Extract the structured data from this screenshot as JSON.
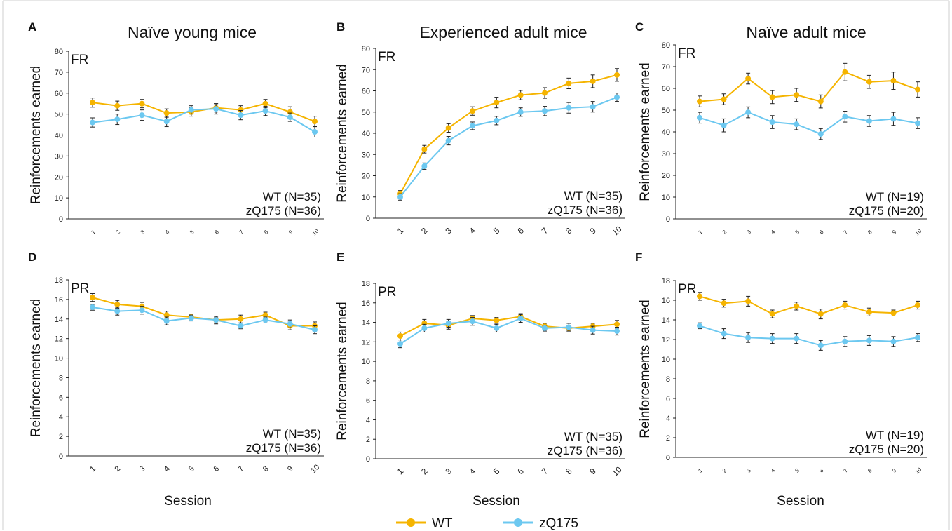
{
  "colors": {
    "wt": "#F5B400",
    "zq": "#6CC8F0",
    "axis": "#222222",
    "text": "#111111"
  },
  "column_titles": [
    "Naïve young mice",
    "Experienced adult mice",
    "Naïve adult mice"
  ],
  "x_axis_label": "Session",
  "legend": {
    "items": [
      {
        "label": "WT",
        "color": "#F5B400"
      },
      {
        "label": "zQ175",
        "color": "#6CC8F0"
      }
    ]
  },
  "chart_data": [
    {
      "type": "line",
      "panel": "A",
      "schedule": "FR",
      "ylabel": "Reinforcements earned",
      "ylim": [
        0,
        80
      ],
      "yticks": [
        0,
        10,
        20,
        30,
        40,
        50,
        60,
        70,
        80
      ],
      "x": [
        1,
        2,
        3,
        4,
        5,
        6,
        7,
        8,
        9,
        10
      ],
      "series": [
        {
          "name": "WT",
          "values": [
            55.5,
            54,
            55,
            50.5,
            51,
            53,
            52,
            55,
            51,
            46.5
          ],
          "errors": [
            2.2,
            2.2,
            2,
            2,
            2,
            2,
            2,
            2,
            2.5,
            2.5
          ]
        },
        {
          "name": "zQ175",
          "values": [
            46,
            47.5,
            49.5,
            46.5,
            52,
            52.5,
            49.5,
            51.5,
            48.5,
            41.5
          ],
          "errors": [
            2.2,
            2.5,
            2.5,
            2.5,
            2,
            2.5,
            2.2,
            2.2,
            2,
            2.5
          ]
        }
      ],
      "annotation": [
        "WT (N=35)",
        "zQ175 (N=36)"
      ]
    },
    {
      "type": "line",
      "panel": "B",
      "schedule": "FR",
      "ylabel": "Reinforcements earned",
      "ylim": [
        0,
        80
      ],
      "yticks": [
        0,
        10,
        20,
        30,
        40,
        50,
        60,
        70,
        80
      ],
      "x": [
        1,
        2,
        3,
        4,
        5,
        6,
        7,
        8,
        9,
        10
      ],
      "series": [
        {
          "name": "WT",
          "values": [
            11.5,
            32.5,
            42.5,
            50.5,
            54.5,
            58,
            59,
            63.5,
            64.5,
            67.5
          ],
          "errors": [
            1.5,
            1.8,
            2,
            2,
            2.5,
            2.2,
            2.5,
            2.5,
            3,
            3
          ]
        },
        {
          "name": "zQ175",
          "values": [
            10,
            24.5,
            36.5,
            43.5,
            46,
            50,
            50.5,
            52,
            52.5,
            57
          ],
          "errors": [
            1.5,
            1.5,
            2,
            1.8,
            2,
            2,
            2.2,
            2.5,
            2.5,
            2
          ]
        }
      ],
      "annotation": [
        "WT (N=35)",
        "zQ175 (N=36)"
      ]
    },
    {
      "type": "line",
      "panel": "C",
      "schedule": "FR",
      "ylabel": "Reinforcements earned",
      "ylim": [
        0,
        80
      ],
      "yticks": [
        0,
        10,
        20,
        30,
        40,
        50,
        60,
        70,
        80
      ],
      "x": [
        1,
        2,
        3,
        4,
        5,
        6,
        7,
        8,
        9,
        10
      ],
      "series": [
        {
          "name": "WT",
          "values": [
            54,
            55,
            64.5,
            56,
            57,
            54,
            67.5,
            63,
            63.5,
            59.5
          ],
          "errors": [
            2.5,
            2.5,
            2.5,
            3,
            3,
            3,
            4,
            3,
            4,
            3.5
          ]
        },
        {
          "name": "zQ175",
          "values": [
            46.5,
            43,
            49,
            44.5,
            43.5,
            39,
            47,
            45,
            46,
            44
          ],
          "errors": [
            2.5,
            3,
            2.5,
            3,
            2.5,
            2.5,
            2.5,
            2.5,
            3,
            2.5
          ]
        }
      ],
      "annotation": [
        "WT (N=19)",
        "zQ175 (N=20)"
      ]
    },
    {
      "type": "line",
      "panel": "D",
      "schedule": "PR",
      "ylabel": "Reinforcements earned",
      "ylim": [
        0,
        18
      ],
      "yticks": [
        0,
        2,
        4,
        6,
        8,
        10,
        12,
        14,
        16,
        18
      ],
      "x": [
        1,
        2,
        3,
        4,
        5,
        6,
        7,
        8,
        9,
        10
      ],
      "series": [
        {
          "name": "WT",
          "values": [
            16.2,
            15.5,
            15.3,
            14.4,
            14.2,
            13.9,
            14,
            14.4,
            13.3,
            13.3
          ],
          "errors": [
            0.4,
            0.4,
            0.4,
            0.4,
            0.3,
            0.3,
            0.4,
            0.3,
            0.4,
            0.4
          ]
        },
        {
          "name": "zQ175",
          "values": [
            15.2,
            14.8,
            14.9,
            13.8,
            14.1,
            13.9,
            13.3,
            13.9,
            13.5,
            12.9
          ],
          "errors": [
            0.3,
            0.4,
            0.4,
            0.4,
            0.3,
            0.4,
            0.3,
            0.3,
            0.4,
            0.4
          ]
        }
      ],
      "annotation": [
        "WT (N=35)",
        "zQ175 (N=36)"
      ]
    },
    {
      "type": "line",
      "panel": "E",
      "schedule": "PR",
      "ylabel": "Reinforcements earned",
      "ylim": [
        0,
        18
      ],
      "yticks": [
        0,
        2,
        4,
        6,
        8,
        10,
        12,
        14,
        16,
        18
      ],
      "x": [
        1,
        2,
        3,
        4,
        5,
        6,
        7,
        8,
        9,
        10
      ],
      "series": [
        {
          "name": "WT",
          "values": [
            12.6,
            13.9,
            13.7,
            14.4,
            14.2,
            14.6,
            13.6,
            13.4,
            13.6,
            13.8
          ],
          "errors": [
            0.4,
            0.4,
            0.4,
            0.3,
            0.3,
            0.3,
            0.3,
            0.3,
            0.3,
            0.4
          ]
        },
        {
          "name": "zQ175",
          "values": [
            11.8,
            13.4,
            13.9,
            14.1,
            13.4,
            14.4,
            13.4,
            13.5,
            13.2,
            13.1
          ],
          "errors": [
            0.4,
            0.4,
            0.4,
            0.4,
            0.4,
            0.4,
            0.3,
            0.4,
            0.4,
            0.4
          ]
        }
      ],
      "annotation": [
        "WT (N=35)",
        "zQ175 (N=36)"
      ]
    },
    {
      "type": "line",
      "panel": "F",
      "schedule": "PR",
      "ylabel": "Reinforcements earned",
      "ylim": [
        0,
        18
      ],
      "yticks": [
        0,
        2,
        4,
        6,
        8,
        10,
        12,
        14,
        16,
        18
      ],
      "x": [
        1,
        2,
        3,
        4,
        5,
        6,
        7,
        8,
        9,
        10
      ],
      "series": [
        {
          "name": "WT",
          "values": [
            16.4,
            15.7,
            15.9,
            14.6,
            15.4,
            14.6,
            15.5,
            14.8,
            14.7,
            15.5
          ],
          "errors": [
            0.4,
            0.4,
            0.5,
            0.4,
            0.4,
            0.5,
            0.4,
            0.4,
            0.3,
            0.4
          ]
        },
        {
          "name": "zQ175",
          "values": [
            13.4,
            12.6,
            12.2,
            12.1,
            12.1,
            11.4,
            11.8,
            11.9,
            11.8,
            12.2
          ],
          "errors": [
            0.3,
            0.5,
            0.5,
            0.5,
            0.5,
            0.5,
            0.5,
            0.5,
            0.5,
            0.4
          ]
        }
      ],
      "annotation": [
        "WT (N=19)",
        "zQ175 (N=20)"
      ]
    }
  ]
}
